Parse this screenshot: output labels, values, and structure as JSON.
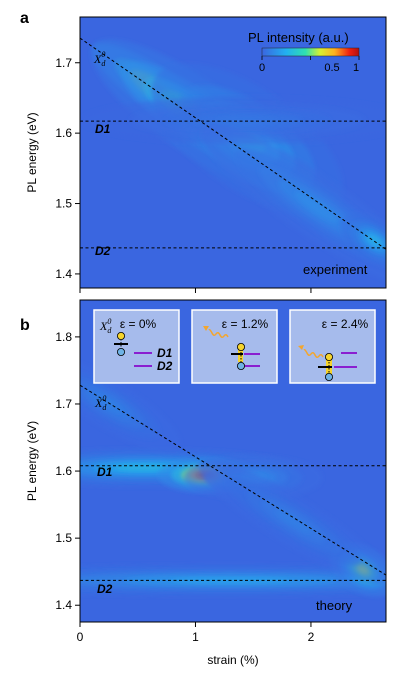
{
  "chart_data": [
    {
      "panel": "a",
      "type": "heatmap",
      "xlim": [
        0,
        2.65
      ],
      "ylim": [
        1.38,
        1.765
      ],
      "y_ticks": [
        1.4,
        1.5,
        1.6,
        1.7
      ],
      "y_tick_labels": [
        "1.4",
        "1.5",
        "1.6",
        "1.7"
      ],
      "ylabel": "PL energy (eV)",
      "show_x_tick_labels": false,
      "colormap": "jet",
      "colorbar": {
        "title": "PL intensity (a.u.)",
        "range": [
          0,
          1
        ],
        "ticks": [
          0,
          0.5,
          1
        ],
        "tick_labels": [
          "0",
          "0.5",
          "1"
        ],
        "position": "top-right"
      },
      "corner_label": "experiment",
      "exciton_label": "X",
      "exciton_sub": "d",
      "exciton_sup": "0",
      "exciton_line": {
        "x": [
          0,
          2.65
        ],
        "y": [
          1.735,
          1.435
        ]
      },
      "reference_lines": [
        {
          "name": "D1",
          "y": 1.617
        },
        {
          "name": "D2",
          "y": 1.437
        }
      ],
      "features": [
        {
          "x": 0.75,
          "y": 1.652,
          "amplitude": 1.0,
          "sx": 0.32,
          "sy": 0.013,
          "follows_line": true
        },
        {
          "x": 1.0,
          "y": 1.624,
          "amplitude": 0.45,
          "sx": 0.45,
          "sy": 0.022,
          "follows_line": true
        },
        {
          "x": 1.45,
          "y": 1.592,
          "amplitude": 0.28,
          "sx": 0.4,
          "sy": 0.03,
          "follows_line": true
        },
        {
          "x": 1.45,
          "y": 1.618,
          "amplitude": 0.06,
          "sx": 0.6,
          "sy": 0.014,
          "follows_line": false
        },
        {
          "x": 2.05,
          "y": 1.495,
          "amplitude": 0.14,
          "sx": 0.5,
          "sy": 0.018,
          "follows_line": true
        },
        {
          "x": 2.55,
          "y": 1.447,
          "amplitude": 0.28,
          "sx": 0.14,
          "sy": 0.012,
          "follows_line": true
        }
      ]
    },
    {
      "panel": "b",
      "type": "heatmap",
      "xlim": [
        0,
        2.65
      ],
      "ylim": [
        1.375,
        1.855
      ],
      "x_ticks": [
        0,
        1,
        2
      ],
      "x_tick_labels": [
        "0",
        "1",
        "2"
      ],
      "y_ticks": [
        1.4,
        1.5,
        1.6,
        1.7,
        1.8
      ],
      "y_tick_labels": [
        "1.4",
        "1.5",
        "1.6",
        "1.7",
        "1.8"
      ],
      "xlabel": "strain (%)",
      "ylabel": "PL energy (eV)",
      "colormap": "jet",
      "corner_label": "theory",
      "exciton_label": "X",
      "exciton_sub": "d",
      "exciton_sup": "0",
      "exciton_line": {
        "x": [
          0,
          2.65
        ],
        "y": [
          1.728,
          1.445
        ]
      },
      "reference_lines": [
        {
          "name": "D1",
          "y": 1.608
        },
        {
          "name": "D2",
          "y": 1.437
        }
      ],
      "features": [
        {
          "x": 0.55,
          "y": 1.605,
          "amplitude": 0.3,
          "sx": 0.55,
          "sy": 0.012,
          "follows_line": false
        },
        {
          "x": 1.08,
          "y": 1.594,
          "amplitude": 1.0,
          "sx": 0.17,
          "sy": 0.011,
          "follows_line": false
        },
        {
          "x": 1.5,
          "y": 1.59,
          "amplitude": 0.14,
          "sx": 0.25,
          "sy": 0.014,
          "follows_line": false
        },
        {
          "x": 1.3,
          "y": 1.437,
          "amplitude": 0.22,
          "sx": 1.15,
          "sy": 0.01,
          "follows_line": false
        },
        {
          "x": 2.45,
          "y": 1.453,
          "amplitude": 0.6,
          "sx": 0.13,
          "sy": 0.014,
          "follows_line": true
        },
        {
          "x": 0.25,
          "y": 1.7,
          "amplitude": 0.1,
          "sx": 0.3,
          "sy": 0.015,
          "follows_line": true
        },
        {
          "x": 1.85,
          "y": 1.525,
          "amplitude": 0.09,
          "sx": 0.4,
          "sy": 0.015,
          "follows_line": true
        }
      ],
      "insets": [
        {
          "epsilon": "ε = 0%",
          "show_exciton_label": true,
          "show_level_labels": true,
          "level_labels": [
            "D1",
            "D2"
          ]
        },
        {
          "epsilon": "ε = 1.2%",
          "show_exciton_label": false,
          "show_level_labels": false,
          "level_labels": []
        },
        {
          "epsilon": "ε = 2.4%",
          "show_exciton_label": false,
          "show_level_labels": false,
          "level_labels": []
        }
      ]
    }
  ],
  "colors": {
    "background": "#3a66e0",
    "level_line": "#8a1fd0",
    "photon": "#f2a630",
    "electron": "#f6d42c",
    "hole": "#6fb3e6",
    "inset_bg": "#a6bbec"
  },
  "panel_letters": [
    "a",
    "b"
  ]
}
